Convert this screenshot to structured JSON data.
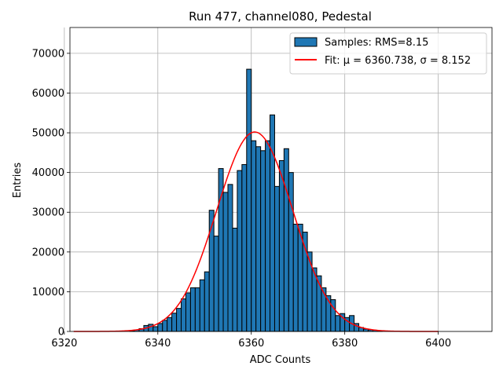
{
  "chart_data": {
    "type": "bar",
    "title": "Run 477, channel080, Pedestal",
    "xlabel": "ADC Counts",
    "ylabel": "Entries",
    "xlim": [
      6321.2,
      6411.5
    ],
    "ylim": [
      0,
      76500
    ],
    "xticks": [
      6320,
      6340,
      6360,
      6380,
      6400
    ],
    "yticks": [
      0,
      10000,
      20000,
      30000,
      40000,
      50000,
      60000,
      70000
    ],
    "grid": true,
    "legend_placement": "top-right",
    "bin_width": 1,
    "series": [
      {
        "name": "Samples: RMS=8.15",
        "kind": "histogram",
        "color": "#1f77b4",
        "edge_color": "#000000",
        "x": [
          6334,
          6335,
          6336,
          6337,
          6338,
          6339,
          6340,
          6341,
          6342,
          6343,
          6344,
          6345,
          6346,
          6347,
          6348,
          6349,
          6350,
          6351,
          6352,
          6353,
          6354,
          6355,
          6356,
          6357,
          6358,
          6359,
          6360,
          6361,
          6362,
          6363,
          6364,
          6365,
          6366,
          6367,
          6368,
          6369,
          6370,
          6371,
          6372,
          6373,
          6374,
          6375,
          6376,
          6377,
          6378,
          6379,
          6380,
          6381,
          6382,
          6383,
          6384,
          6385,
          6386,
          6387
        ],
        "values": [
          200,
          400,
          700,
          1500,
          1800,
          1200,
          2000,
          2800,
          3500,
          4600,
          5800,
          8200,
          9700,
          11000,
          11000,
          13000,
          15000,
          30500,
          24000,
          41000,
          35000,
          37000,
          26000,
          40500,
          42000,
          66000,
          48000,
          46500,
          45500,
          48000,
          54500,
          36500,
          43000,
          46000,
          40000,
          27000,
          27000,
          25000,
          20000,
          16000,
          14000,
          11000,
          9000,
          8000,
          4000,
          4500,
          3500,
          4000,
          2000,
          1000,
          600,
          400,
          300,
          100
        ]
      },
      {
        "name": "Fit: μ = 6360.738, σ = 8.152",
        "kind": "gaussian",
        "color": "#ff0000",
        "mu": 6360.738,
        "sigma": 8.152,
        "amplitude": 50200,
        "x_range": [
          6322,
          6400
        ]
      }
    ]
  }
}
